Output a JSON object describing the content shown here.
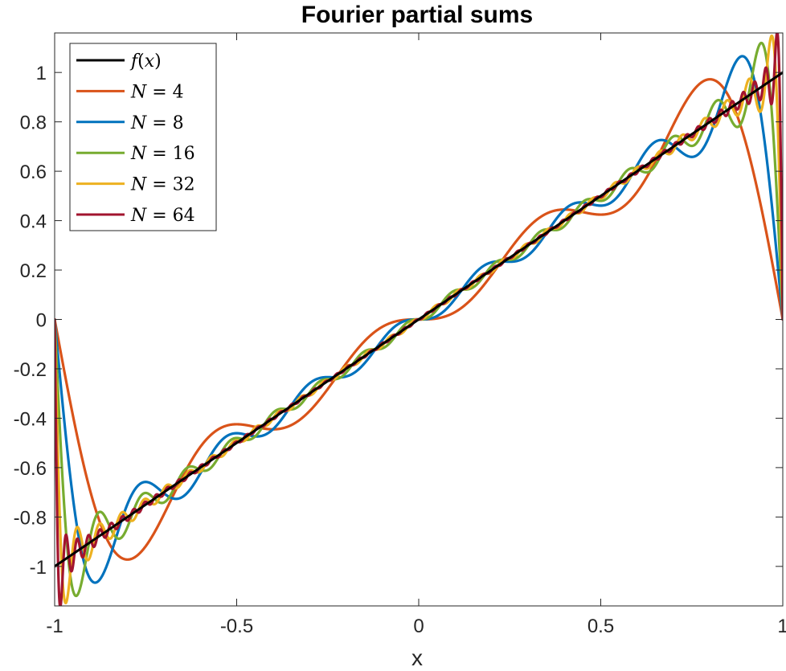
{
  "chart_data": {
    "type": "line",
    "title": "Fourier partial sums",
    "xlabel": "x",
    "ylabel": "",
    "xlim": [
      -1,
      1
    ],
    "ylim": [
      -1.16,
      1.16
    ],
    "xticks": [
      -1,
      -0.5,
      0,
      0.5,
      1
    ],
    "yticks": [
      -1,
      -0.8,
      -0.6,
      -0.4,
      -0.2,
      0,
      0.2,
      0.4,
      0.6,
      0.8,
      1
    ],
    "xtick_labels": [
      "-1",
      "-0.5",
      "0",
      "0.5",
      "1"
    ],
    "ytick_labels": [
      "-1",
      "-0.8",
      "-0.6",
      "-0.4",
      "-0.2",
      "0",
      "0.2",
      "0.4",
      "0.6",
      "0.8",
      "1"
    ],
    "grid": false,
    "legend_position": "top-left",
    "series": [
      {
        "name": "f(x)",
        "label_parts": [
          "f",
          "(",
          "x",
          ")"
        ],
        "color": "#000000",
        "kind": "function"
      },
      {
        "name": "N = 4",
        "label_parts": [
          "N",
          " = ",
          "4"
        ],
        "color": "#D95319",
        "N": 4
      },
      {
        "name": "N = 8",
        "label_parts": [
          "N",
          " = ",
          "8"
        ],
        "color": "#0072BD",
        "N": 8
      },
      {
        "name": "N = 16",
        "label_parts": [
          "N",
          " = ",
          "16"
        ],
        "color": "#77AC30",
        "N": 16
      },
      {
        "name": "N = 32",
        "label_parts": [
          "N",
          " = ",
          "32"
        ],
        "color": "#EDB120",
        "N": 32
      },
      {
        "name": "N = 64",
        "label_parts": [
          "N",
          " = ",
          "64"
        ],
        "color": "#A2142F",
        "N": 64
      }
    ]
  }
}
